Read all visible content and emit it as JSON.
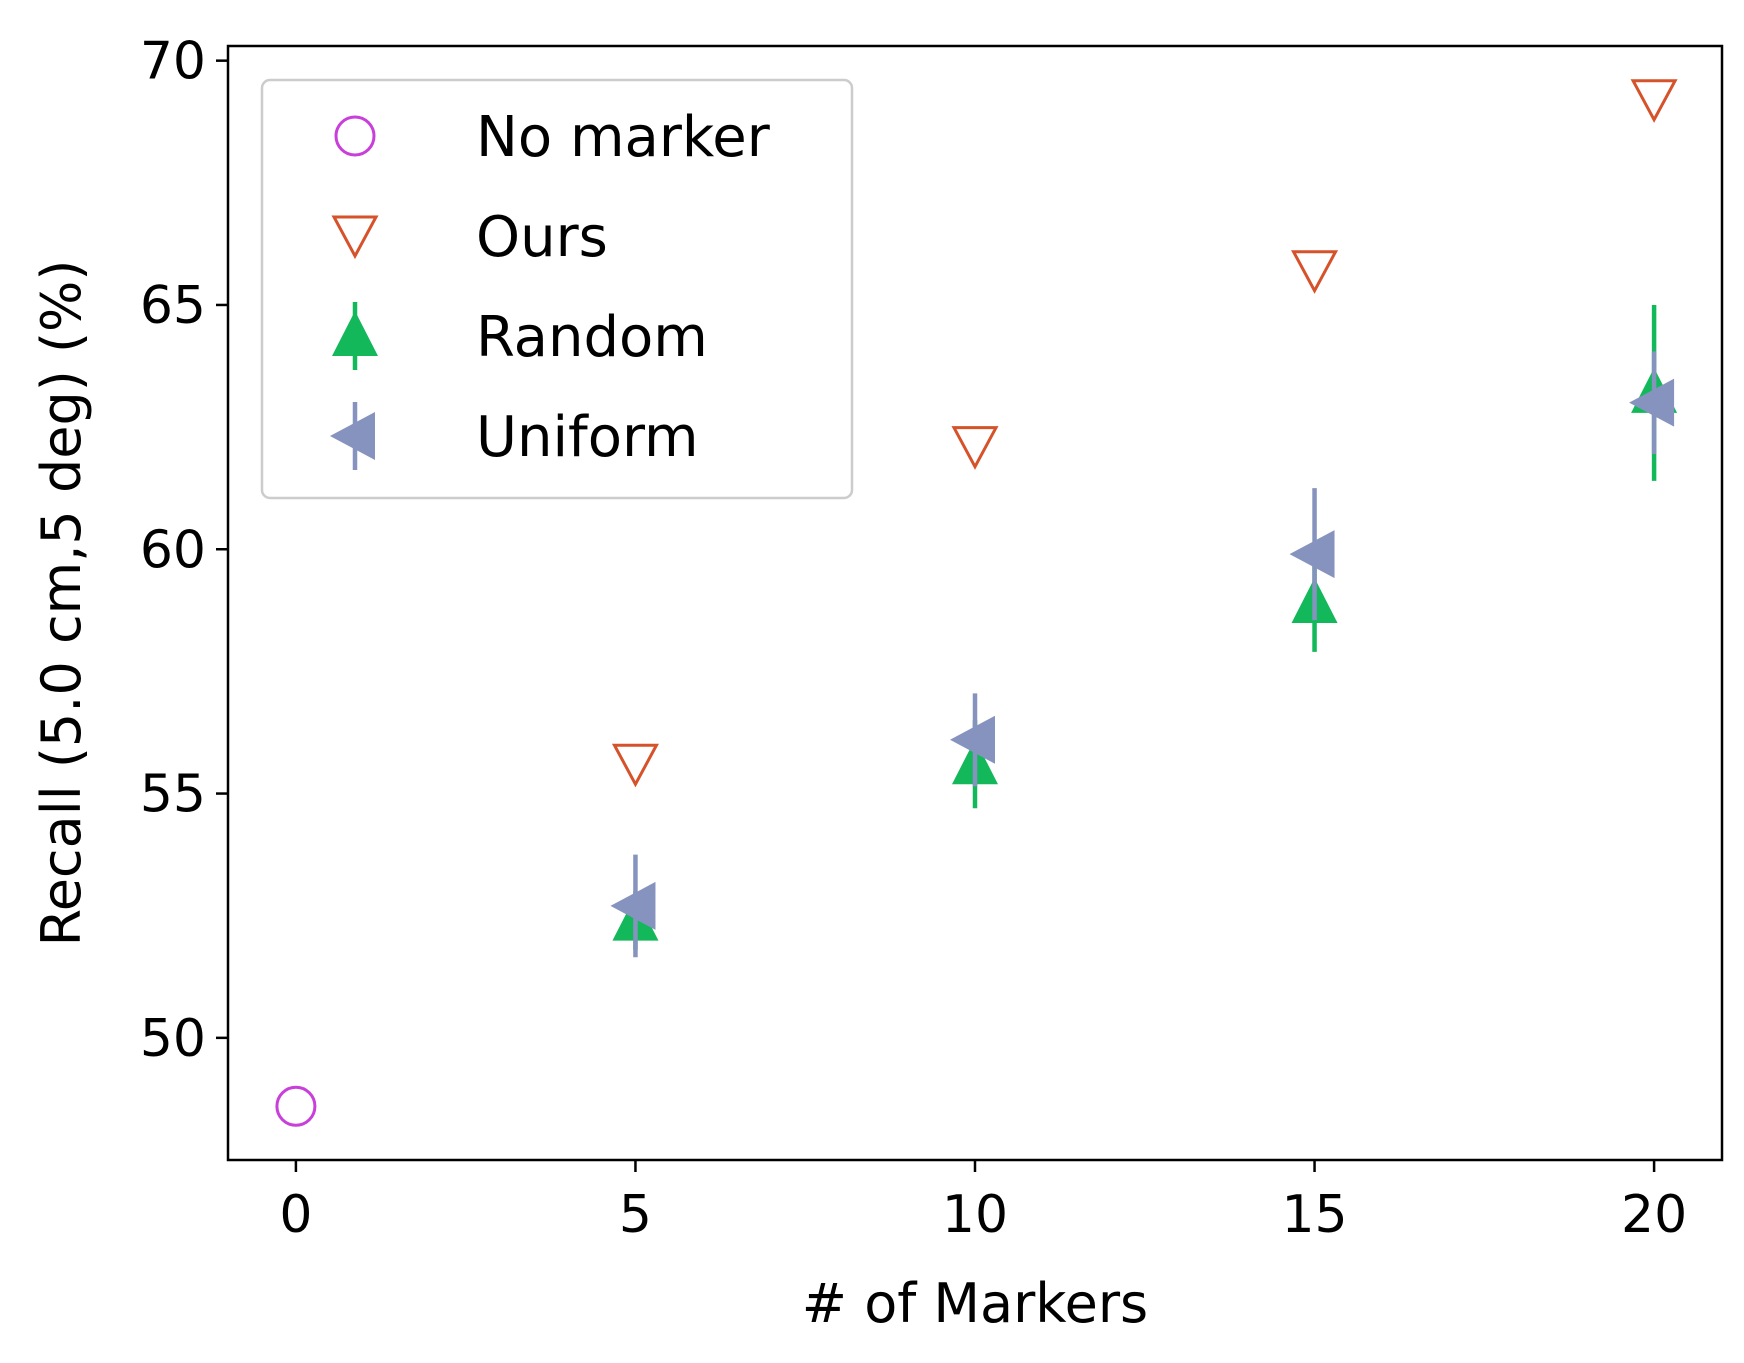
{
  "chart_data": {
    "type": "scatter",
    "title": "",
    "xlabel": "# of Markers",
    "ylabel": "Recall (5.0 cm,5 deg) (%)",
    "xlim": [
      -1,
      21
    ],
    "ylim": [
      47.5,
      70.3
    ],
    "xticks": [
      0,
      5,
      10,
      15,
      20
    ],
    "yticks": [
      50,
      55,
      60,
      65,
      70
    ],
    "grid": false,
    "legend_position": "top-left",
    "series": [
      {
        "name": "No marker",
        "marker": "circle-open",
        "color": "#c93fd9",
        "points": [
          {
            "x": 0,
            "y": 48.6
          }
        ]
      },
      {
        "name": "Ours",
        "marker": "triangle-down-open",
        "color": "#d5522a",
        "points": [
          {
            "x": 5,
            "y": 55.6
          },
          {
            "x": 10,
            "y": 62.1
          },
          {
            "x": 15,
            "y": 65.7
          },
          {
            "x": 20,
            "y": 69.2
          }
        ]
      },
      {
        "name": "Random",
        "marker": "triangle-up-filled",
        "color": "#12b85a",
        "points": [
          {
            "x": 5,
            "y": 52.4,
            "err": 0.6
          },
          {
            "x": 10,
            "y": 55.6,
            "err": 0.9
          },
          {
            "x": 15,
            "y": 58.9,
            "err": 1.0
          },
          {
            "x": 20,
            "y": 63.2,
            "err": 1.8
          }
        ]
      },
      {
        "name": "Uniform",
        "marker": "triangle-left-filled",
        "color": "#8793bf",
        "points": [
          {
            "x": 5,
            "y": 52.7,
            "err": 1.05
          },
          {
            "x": 10,
            "y": 56.1,
            "err": 0.95
          },
          {
            "x": 15,
            "y": 59.9,
            "err": 1.35
          },
          {
            "x": 20,
            "y": 63.0,
            "err": 1.05
          }
        ]
      }
    ]
  }
}
